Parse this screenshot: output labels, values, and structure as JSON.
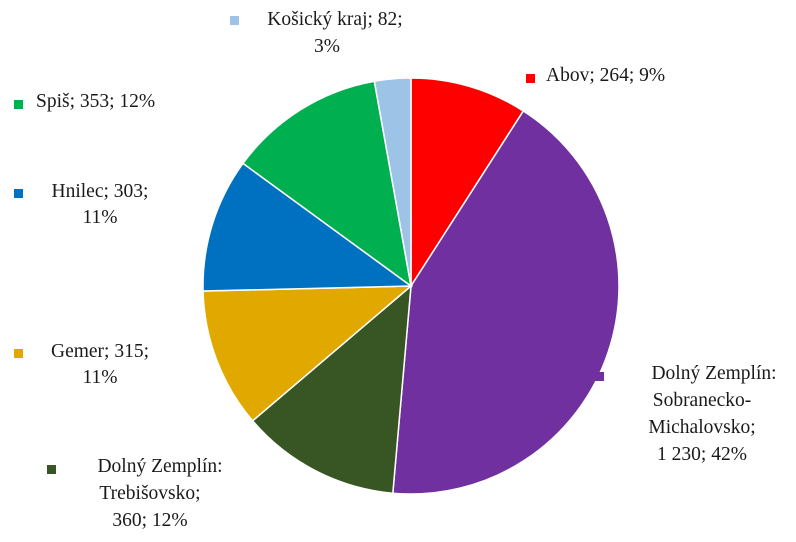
{
  "chart_data": {
    "type": "pie",
    "slices": [
      {
        "key": "abov",
        "label_lines": [
          "Abov; 264; 9%"
        ],
        "value": 264,
        "percent": 9,
        "color": "#ff0000"
      },
      {
        "key": "dolny-zemplin-sobranecko",
        "label_lines": [
          "Dolný Zemplín:",
          "Sobranecko-",
          "Michalovsko;",
          "1 230; 42%"
        ],
        "value": 1230,
        "percent": 42,
        "color": "#7030a0"
      },
      {
        "key": "dolny-zemplin-trebisovsko",
        "label_lines": [
          "Dolný Zemplín:",
          "Trebišovsko;",
          "360; 12%"
        ],
        "value": 360,
        "percent": 12,
        "color": "#375623"
      },
      {
        "key": "gemer",
        "label_lines": [
          "Gemer; 315;",
          "11%"
        ],
        "value": 315,
        "percent": 11,
        "color": "#e1a800"
      },
      {
        "key": "hnilec",
        "label_lines": [
          "Hnilec; 303;",
          "11%"
        ],
        "value": 303,
        "percent": 11,
        "color": "#0070c0"
      },
      {
        "key": "spis",
        "label_lines": [
          "Spiš; 353; 12%"
        ],
        "value": 353,
        "percent": 12,
        "color": "#00b050"
      },
      {
        "key": "kosicky-kraj",
        "label_lines": [
          "Košický kraj; 82;",
          "3%"
        ],
        "value": 82,
        "percent": 3,
        "color": "#9dc3e6"
      }
    ]
  }
}
